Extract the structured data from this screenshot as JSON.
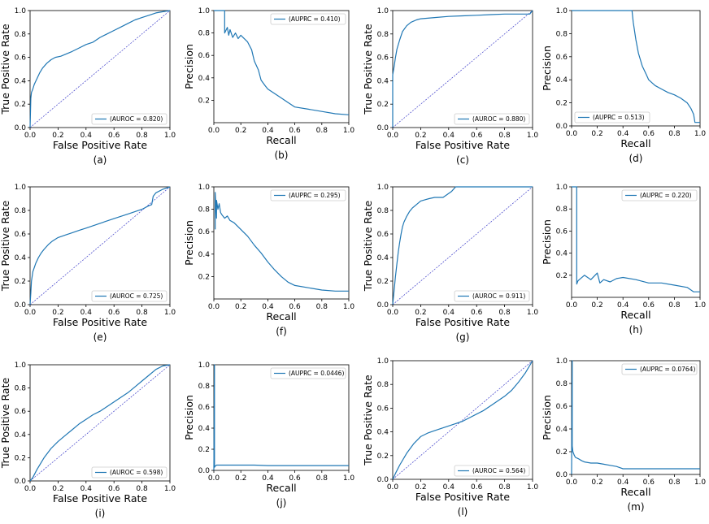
{
  "colors": {
    "curve": "#1f77b4",
    "diagonal": "#3b3bc8",
    "axis": "#000000",
    "legend_border": "#cccccc"
  },
  "chart_data": [
    {
      "id": "a",
      "type": "line",
      "kind": "roc",
      "caption": "(a)",
      "xlabel": "False Positive Rate",
      "ylabel": "True Positive Rate",
      "legend": "(AUROC = 0.820)",
      "legend_loc": "lower-right",
      "diagonal": true,
      "xlim": [
        0,
        1
      ],
      "ylim": [
        0,
        1
      ],
      "xticks": [
        "0.0",
        "0.2",
        "0.4",
        "0.6",
        "0.8",
        "1.0"
      ],
      "yticks": [
        "0.0",
        "0.2",
        "0.4",
        "0.6",
        "0.8",
        "1.0"
      ],
      "x": [
        0,
        0.005,
        0.01,
        0.02,
        0.03,
        0.05,
        0.07,
        0.09,
        0.12,
        0.15,
        0.18,
        0.22,
        0.26,
        0.3,
        0.35,
        0.4,
        0.45,
        0.5,
        0.55,
        0.6,
        0.65,
        0.7,
        0.75,
        0.8,
        0.85,
        0.9,
        0.95,
        1.0
      ],
      "y": [
        0,
        0.25,
        0.3,
        0.33,
        0.37,
        0.42,
        0.47,
        0.51,
        0.55,
        0.58,
        0.6,
        0.61,
        0.63,
        0.65,
        0.68,
        0.71,
        0.73,
        0.77,
        0.8,
        0.83,
        0.86,
        0.89,
        0.92,
        0.94,
        0.96,
        0.98,
        0.99,
        1.0
      ]
    },
    {
      "id": "b",
      "type": "line",
      "kind": "pr",
      "caption": "(b)",
      "xlabel": "Recall",
      "ylabel": "Precision",
      "legend": "(AUPRC = 0.410)",
      "legend_loc": "upper-right",
      "diagonal": false,
      "xlim": [
        0,
        1
      ],
      "ylim": [
        0,
        1
      ],
      "xticks": [
        "0.0",
        "0.2",
        "0.4",
        "0.6",
        "0.8",
        "1.0"
      ],
      "yticks": [
        "0.2",
        "0.4",
        "0.6",
        "0.8",
        "1.0"
      ],
      "x": [
        0,
        0.05,
        0.08,
        0.08,
        0.1,
        0.11,
        0.12,
        0.14,
        0.16,
        0.18,
        0.2,
        0.25,
        0.28,
        0.3,
        0.33,
        0.35,
        0.38,
        0.4,
        0.45,
        0.5,
        0.55,
        0.6,
        0.7,
        0.8,
        0.9,
        1.0
      ],
      "y": [
        1.0,
        1.0,
        1.0,
        0.8,
        0.85,
        0.78,
        0.83,
        0.76,
        0.8,
        0.75,
        0.78,
        0.72,
        0.65,
        0.55,
        0.47,
        0.38,
        0.33,
        0.3,
        0.26,
        0.22,
        0.18,
        0.14,
        0.12,
        0.1,
        0.08,
        0.07
      ]
    },
    {
      "id": "c",
      "type": "line",
      "kind": "roc",
      "caption": "(c)",
      "xlabel": "False Positive Rate",
      "ylabel": "True Positive Rate",
      "legend": "(AUROC = 0.880)",
      "legend_loc": "lower-right",
      "diagonal": true,
      "xlim": [
        0,
        1
      ],
      "ylim": [
        0,
        1
      ],
      "xticks": [
        "0.0",
        "0.2",
        "0.4",
        "0.6",
        "0.8",
        "1.0"
      ],
      "yticks": [
        "0.0",
        "0.2",
        "0.4",
        "0.6",
        "0.8",
        "1.0"
      ],
      "x": [
        0,
        0,
        0.01,
        0.02,
        0.03,
        0.05,
        0.07,
        0.1,
        0.13,
        0.17,
        0.2,
        0.3,
        0.4,
        0.5,
        0.6,
        0.7,
        0.8,
        0.9,
        0.98,
        1.0
      ],
      "y": [
        0,
        0.45,
        0.52,
        0.6,
        0.67,
        0.75,
        0.82,
        0.87,
        0.9,
        0.92,
        0.93,
        0.94,
        0.95,
        0.955,
        0.96,
        0.965,
        0.97,
        0.97,
        0.97,
        1.0
      ]
    },
    {
      "id": "d",
      "type": "line",
      "kind": "pr",
      "caption": "(d)",
      "xlabel": "Recall",
      "ylabel": "Precision",
      "legend": "(AUPRC = 0.513)",
      "legend_loc": "lower-left",
      "diagonal": false,
      "xlim": [
        0,
        1
      ],
      "ylim": [
        0,
        1
      ],
      "xticks": [
        "0.0",
        "0.2",
        "0.4",
        "0.6",
        "0.8",
        "1.0"
      ],
      "yticks": [
        "0.0",
        "0.2",
        "0.4",
        "0.6",
        "0.8",
        "1.0"
      ],
      "x": [
        0,
        0.1,
        0.2,
        0.3,
        0.4,
        0.45,
        0.47,
        0.48,
        0.5,
        0.52,
        0.55,
        0.58,
        0.6,
        0.65,
        0.7,
        0.75,
        0.8,
        0.85,
        0.9,
        0.93,
        0.95,
        0.96,
        0.98,
        1.0
      ],
      "y": [
        1.0,
        1.0,
        1.0,
        1.0,
        1.0,
        1.0,
        1.0,
        0.9,
        0.75,
        0.63,
        0.52,
        0.45,
        0.4,
        0.35,
        0.32,
        0.29,
        0.27,
        0.24,
        0.2,
        0.15,
        0.1,
        0.03,
        0.03,
        0.03
      ]
    },
    {
      "id": "e",
      "type": "line",
      "kind": "roc",
      "caption": "(e)",
      "xlabel": "False Positive Rate",
      "ylabel": "True Positive Rate",
      "legend": "(AUROC = 0.725)",
      "legend_loc": "lower-right",
      "diagonal": true,
      "xlim": [
        0,
        1
      ],
      "ylim": [
        0,
        1
      ],
      "xticks": [
        "0.0",
        "0.2",
        "0.4",
        "0.6",
        "0.8",
        "1.0"
      ],
      "yticks": [
        "0.0",
        "0.2",
        "0.4",
        "0.6",
        "0.8",
        "1.0"
      ],
      "x": [
        0,
        0.005,
        0.01,
        0.02,
        0.04,
        0.06,
        0.08,
        0.1,
        0.13,
        0.16,
        0.2,
        0.25,
        0.3,
        0.35,
        0.4,
        0.5,
        0.6,
        0.7,
        0.8,
        0.85,
        0.87,
        0.88,
        0.9,
        0.95,
        1.0
      ],
      "y": [
        0,
        0.1,
        0.2,
        0.28,
        0.35,
        0.4,
        0.44,
        0.47,
        0.51,
        0.54,
        0.57,
        0.59,
        0.61,
        0.63,
        0.65,
        0.69,
        0.73,
        0.77,
        0.81,
        0.84,
        0.85,
        0.92,
        0.95,
        0.98,
        1.0
      ]
    },
    {
      "id": "f",
      "type": "line",
      "kind": "pr",
      "caption": "(f)",
      "xlabel": "Recall",
      "ylabel": "Precision",
      "legend": "(AUPRC = 0.295)",
      "legend_loc": "upper-right",
      "diagonal": false,
      "xlim": [
        0,
        1
      ],
      "ylim": [
        0,
        1
      ],
      "xticks": [
        "0.0",
        "0.2",
        "0.4",
        "0.6",
        "0.8",
        "1.0"
      ],
      "yticks": [
        "0.2",
        "0.4",
        "0.6",
        "0.8",
        "1.0"
      ],
      "x": [
        0.01,
        0.01,
        0.02,
        0.02,
        0.03,
        0.04,
        0.05,
        0.06,
        0.08,
        0.1,
        0.12,
        0.15,
        0.2,
        0.25,
        0.3,
        0.35,
        0.4,
        0.45,
        0.5,
        0.55,
        0.6,
        0.7,
        0.8,
        0.9,
        1.0
      ],
      "y": [
        0.62,
        0.95,
        0.72,
        0.88,
        0.8,
        0.85,
        0.77,
        0.75,
        0.72,
        0.74,
        0.7,
        0.68,
        0.62,
        0.56,
        0.48,
        0.41,
        0.33,
        0.26,
        0.2,
        0.15,
        0.12,
        0.1,
        0.08,
        0.07,
        0.07
      ]
    },
    {
      "id": "g",
      "type": "line",
      "kind": "roc",
      "caption": "(g)",
      "xlabel": "False Positive Rate",
      "ylabel": "True Positive Rate",
      "legend": "(AUROC = 0.911)",
      "legend_loc": "lower-right",
      "diagonal": true,
      "xlim": [
        0,
        1
      ],
      "ylim": [
        0,
        1
      ],
      "xticks": [
        "0.0",
        "0.2",
        "0.4",
        "0.6",
        "0.8",
        "1.0"
      ],
      "yticks": [
        "0.0",
        "0.2",
        "0.4",
        "0.6",
        "0.8",
        "1.0"
      ],
      "x": [
        0,
        0.01,
        0.02,
        0.03,
        0.04,
        0.05,
        0.06,
        0.07,
        0.08,
        0.1,
        0.12,
        0.14,
        0.17,
        0.2,
        0.23,
        0.26,
        0.3,
        0.36,
        0.42,
        0.45,
        0.5,
        0.6,
        0.7,
        0.8,
        0.9,
        1.0
      ],
      "y": [
        0,
        0.12,
        0.24,
        0.35,
        0.45,
        0.53,
        0.6,
        0.66,
        0.7,
        0.75,
        0.79,
        0.82,
        0.85,
        0.88,
        0.89,
        0.9,
        0.91,
        0.91,
        0.96,
        1.0,
        1.0,
        1.0,
        1.0,
        1.0,
        1.0,
        1.0
      ]
    },
    {
      "id": "h",
      "type": "line",
      "kind": "pr",
      "caption": "(h)",
      "xlabel": "Recall",
      "ylabel": "Precision",
      "legend": "(AUPRC = 0.220)",
      "legend_loc": "upper-right",
      "diagonal": false,
      "xlim": [
        0,
        1
      ],
      "ylim": [
        0,
        1
      ],
      "xticks": [
        "0.0",
        "0.2",
        "0.4",
        "0.6",
        "0.8",
        "1.0"
      ],
      "yticks": [
        "0.2",
        "0.4",
        "0.6",
        "0.8",
        "1.0"
      ],
      "x": [
        0,
        0.04,
        0.04,
        0.05,
        0.1,
        0.15,
        0.2,
        0.22,
        0.25,
        0.3,
        0.35,
        0.4,
        0.5,
        0.6,
        0.7,
        0.8,
        0.9,
        0.95,
        1.0
      ],
      "y": [
        1.0,
        1.0,
        0.12,
        0.15,
        0.2,
        0.16,
        0.22,
        0.13,
        0.16,
        0.14,
        0.17,
        0.18,
        0.16,
        0.13,
        0.13,
        0.11,
        0.09,
        0.05,
        0.05
      ]
    },
    {
      "id": "i",
      "type": "line",
      "kind": "roc",
      "caption": "(i)",
      "xlabel": "False Positive Rate",
      "ylabel": "True Positive Rate",
      "legend": "(AUROC = 0.598)",
      "legend_loc": "lower-right",
      "diagonal": true,
      "xlim": [
        0,
        1
      ],
      "ylim": [
        0,
        1
      ],
      "xticks": [
        "0.0",
        "0.2",
        "0.4",
        "0.6",
        "0.8",
        "1.0"
      ],
      "yticks": [
        "0.0",
        "0.2",
        "0.4",
        "0.6",
        "0.8",
        "1.0"
      ],
      "x": [
        0,
        0.02,
        0.05,
        0.1,
        0.15,
        0.2,
        0.25,
        0.3,
        0.35,
        0.4,
        0.45,
        0.5,
        0.55,
        0.6,
        0.65,
        0.7,
        0.75,
        0.8,
        0.85,
        0.9,
        0.95,
        1.0
      ],
      "y": [
        0,
        0.03,
        0.1,
        0.2,
        0.28,
        0.34,
        0.39,
        0.44,
        0.49,
        0.53,
        0.57,
        0.6,
        0.64,
        0.68,
        0.72,
        0.76,
        0.81,
        0.86,
        0.91,
        0.96,
        0.99,
        1.0
      ]
    },
    {
      "id": "j",
      "type": "line",
      "kind": "pr",
      "caption": "(j)",
      "xlabel": "Recall",
      "ylabel": "Precision",
      "legend": "(AUPRC = 0.0446)",
      "legend_loc": "upper-right",
      "diagonal": false,
      "xlim": [
        0,
        1
      ],
      "ylim": [
        0,
        1
      ],
      "xticks": [
        "0.0",
        "0.2",
        "0.4",
        "0.6",
        "0.8",
        "1.0"
      ],
      "yticks": [
        "0.0",
        "0.2",
        "0.4",
        "0.6",
        "0.8",
        "1.0"
      ],
      "x": [
        0,
        0.005,
        0.005,
        0.01,
        0.02,
        0.05,
        0.1,
        0.2,
        0.3,
        0.4,
        0.5,
        0.6,
        0.7,
        0.8,
        0.9,
        1.0
      ],
      "y": [
        0,
        1.0,
        0.03,
        0.04,
        0.05,
        0.05,
        0.05,
        0.05,
        0.05,
        0.045,
        0.045,
        0.045,
        0.045,
        0.045,
        0.045,
        0.045
      ]
    },
    {
      "id": "l",
      "type": "line",
      "kind": "roc",
      "caption": "(l)",
      "xlabel": "False Positive Rate",
      "ylabel": "True Positive Rate",
      "legend": "(AUROC = 0.564)",
      "legend_loc": "lower-right",
      "diagonal": true,
      "xlim": [
        0,
        1
      ],
      "ylim": [
        0,
        1
      ],
      "xticks": [
        "0.0",
        "0.2",
        "0.4",
        "0.6",
        "0.8",
        "1.0"
      ],
      "yticks": [
        "0.0",
        "0.2",
        "0.4",
        "0.6",
        "0.8",
        "1.0"
      ],
      "x": [
        0,
        0.02,
        0.05,
        0.1,
        0.15,
        0.2,
        0.25,
        0.3,
        0.35,
        0.4,
        0.45,
        0.5,
        0.55,
        0.6,
        0.65,
        0.7,
        0.75,
        0.8,
        0.85,
        0.9,
        0.95,
        1.0
      ],
      "y": [
        0,
        0.05,
        0.12,
        0.22,
        0.3,
        0.36,
        0.39,
        0.41,
        0.43,
        0.45,
        0.47,
        0.49,
        0.52,
        0.55,
        0.58,
        0.62,
        0.66,
        0.7,
        0.75,
        0.82,
        0.9,
        1.0
      ]
    },
    {
      "id": "m",
      "type": "line",
      "kind": "pr",
      "caption": "(m)",
      "xlabel": "Recall",
      "ylabel": "Precision",
      "legend": "(AUPRC = 0.0764)",
      "legend_loc": "upper-right",
      "diagonal": false,
      "xlim": [
        0,
        1
      ],
      "ylim": [
        0,
        1
      ],
      "xticks": [
        "0.0",
        "0.2",
        "0.4",
        "0.6",
        "0.8",
        "1.0"
      ],
      "yticks": [
        "0.0",
        "0.2",
        "0.4",
        "0.6",
        "0.8",
        "1.0"
      ],
      "x": [
        0,
        0.005,
        0.005,
        0.01,
        0.02,
        0.03,
        0.05,
        0.08,
        0.1,
        0.15,
        0.2,
        0.25,
        0.3,
        0.35,
        0.4,
        0.5,
        0.6,
        0.7,
        0.8,
        0.9,
        1.0
      ],
      "y": [
        0,
        1.0,
        0.25,
        0.2,
        0.17,
        0.15,
        0.14,
        0.12,
        0.11,
        0.1,
        0.1,
        0.09,
        0.08,
        0.07,
        0.05,
        0.05,
        0.05,
        0.05,
        0.05,
        0.05,
        0.05
      ]
    }
  ]
}
